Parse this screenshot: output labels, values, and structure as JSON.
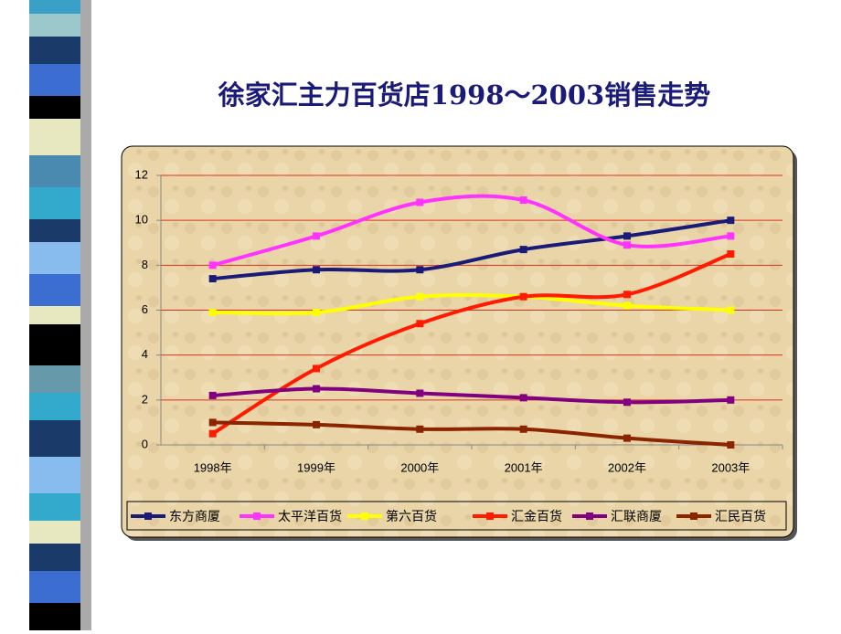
{
  "chart_data": {
    "type": "line",
    "title": "徐家汇主力百货店1998～2003销售走势",
    "categories": [
      "1998年",
      "1999年",
      "2000年",
      "2001年",
      "2002年",
      "2003年"
    ],
    "series": [
      {
        "name": "东方商厦",
        "color": "#1a1a78",
        "values": [
          7.4,
          7.8,
          7.8,
          8.7,
          9.3,
          10.0
        ]
      },
      {
        "name": "太平洋百货",
        "color": "#ff33ff",
        "values": [
          8.0,
          9.3,
          10.8,
          10.9,
          8.9,
          9.3
        ]
      },
      {
        "name": "第六百货",
        "color": "#ffff00",
        "values": [
          5.9,
          5.9,
          6.6,
          6.6,
          6.2,
          6.0
        ]
      },
      {
        "name": "汇金百货",
        "color": "#ff1a00",
        "values": [
          0.5,
          3.4,
          5.4,
          6.6,
          6.7,
          8.5
        ]
      },
      {
        "name": "汇联商厦",
        "color": "#800080",
        "values": [
          2.2,
          2.5,
          2.3,
          2.1,
          1.9,
          2.0
        ]
      },
      {
        "name": "汇民百货",
        "color": "#8b2500",
        "values": [
          1.0,
          0.9,
          0.7,
          0.7,
          0.3,
          0.0
        ]
      }
    ],
    "ylim": [
      0,
      12
    ],
    "yticks": [
      0,
      2,
      4,
      6,
      8,
      10,
      12
    ],
    "grid": true,
    "smooth": true,
    "legend": "bottom"
  }
}
